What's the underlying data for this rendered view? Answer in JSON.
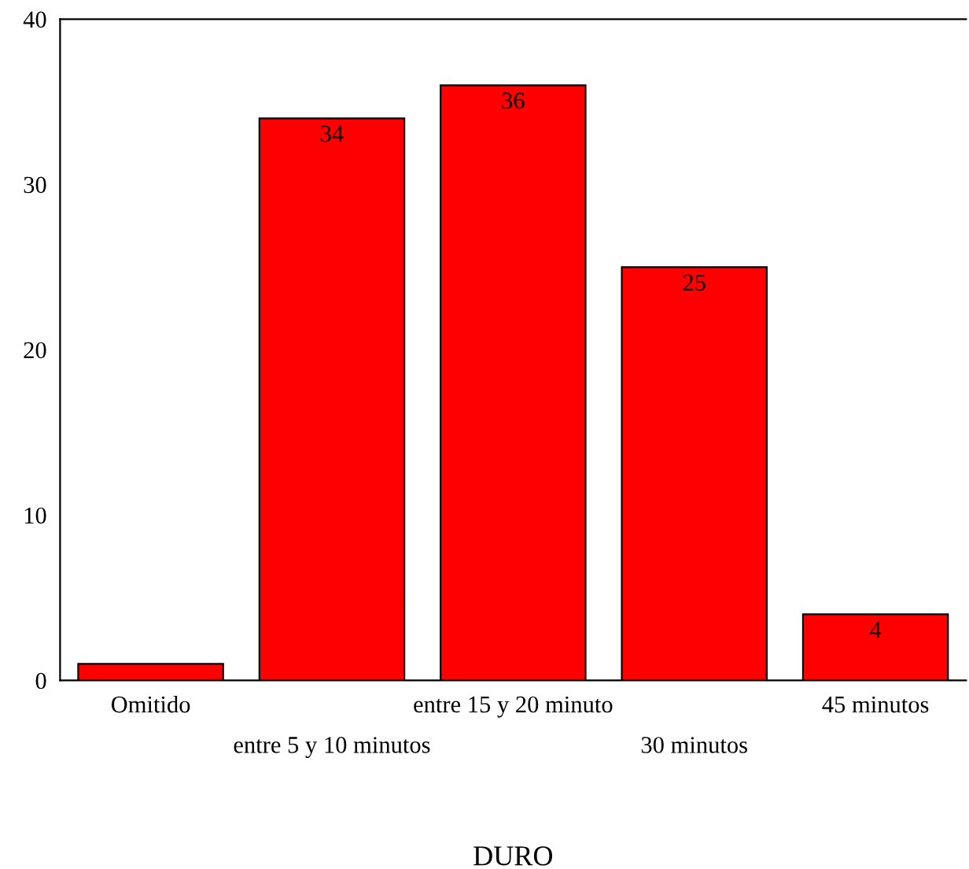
{
  "chart_data": {
    "type": "bar",
    "xlabel": "DURO",
    "categories": [
      "Omitido",
      "entre 5 y 10 minutos",
      "entre 15 y 20 minuto",
      "30 minutos",
      "45 minutos"
    ],
    "values": [
      1,
      34,
      36,
      25,
      4
    ],
    "value_labels": [
      null,
      "34",
      "36",
      "25",
      "4"
    ],
    "color": "#ff0000",
    "ylim": [
      0,
      40
    ],
    "yticks": [
      0,
      10,
      20,
      30,
      40
    ],
    "grid": false
  }
}
